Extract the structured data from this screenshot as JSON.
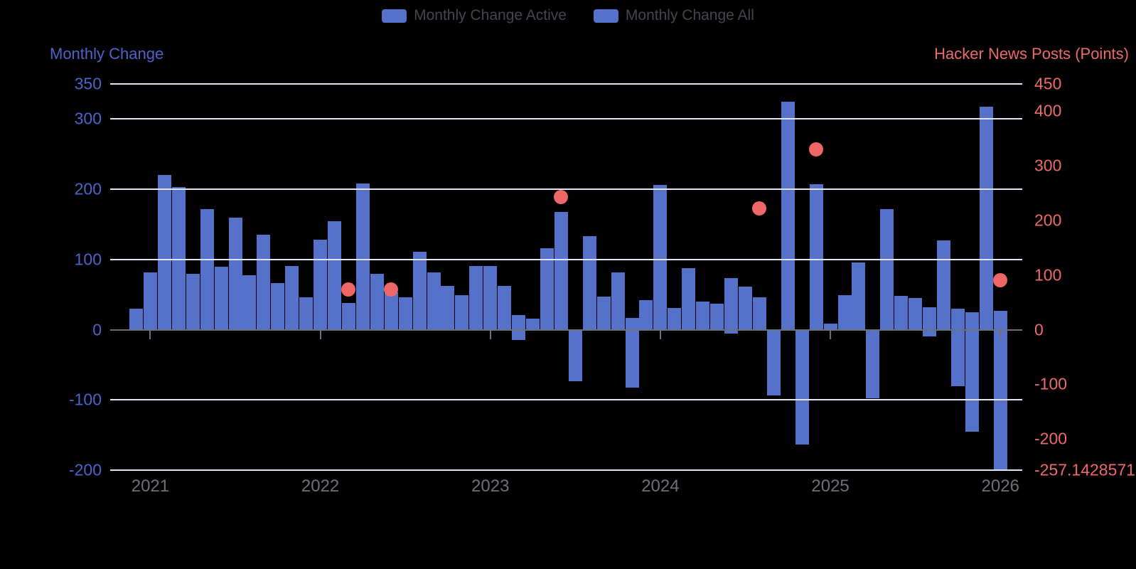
{
  "legend": {
    "items": [
      {
        "label": "Monthly Change Active",
        "swatch_color": "#5571c9"
      },
      {
        "label": "Monthly Change All",
        "swatch_color": "#5571c9"
      }
    ]
  },
  "left_axis_title": "Monthly Change",
  "right_axis_title": "Hacker News Posts (Points)",
  "colors": {
    "bar_blue": "#5571c9",
    "scatter_red": "#ee6666",
    "left_axis_text": "#4c64c8",
    "right_axis_text": "#ee6a6a",
    "x_axis_text": "#6E7079",
    "gridline": "#e0e6f1",
    "zero_line": "#6E7079",
    "background": "#000000"
  },
  "chart_data": {
    "type": "bar+scatter",
    "title": "",
    "months": [
      "2020-12",
      "2021-01",
      "2021-02",
      "2021-03",
      "2021-04",
      "2021-05",
      "2021-06",
      "2021-07",
      "2021-08",
      "2021-09",
      "2021-10",
      "2021-11",
      "2021-12",
      "2022-01",
      "2022-02",
      "2022-03",
      "2022-04",
      "2022-05",
      "2022-06",
      "2022-07",
      "2022-08",
      "2022-09",
      "2022-10",
      "2022-11",
      "2022-12",
      "2023-01",
      "2023-02",
      "2023-03",
      "2023-04",
      "2023-05",
      "2023-06",
      "2023-07",
      "2023-08",
      "2023-09",
      "2023-10",
      "2023-11",
      "2023-12",
      "2024-01",
      "2024-02",
      "2024-03",
      "2024-04",
      "2024-05",
      "2024-06",
      "2024-07",
      "2024-08",
      "2024-09",
      "2024-10",
      "2024-11",
      "2024-12",
      "2025-01",
      "2025-02",
      "2025-03",
      "2025-04",
      "2025-05",
      "2025-06",
      "2025-07",
      "2025-08",
      "2025-09",
      "2025-10",
      "2025-11",
      "2025-12",
      "2026-01"
    ],
    "series": [
      {
        "name": "Monthly Change Active",
        "type": "bar",
        "axis": "left",
        "values": [
          30,
          82,
          220,
          203,
          80,
          172,
          90,
          160,
          78,
          135,
          66,
          91,
          46,
          128,
          155,
          38,
          208,
          80,
          53,
          46,
          111,
          82,
          62,
          49,
          91,
          91,
          62,
          21,
          16,
          116,
          168,
          -73,
          133,
          47,
          82,
          17,
          42,
          206,
          31,
          88,
          40,
          37,
          73,
          61,
          46,
          -94,
          325,
          -164,
          207,
          9,
          49,
          96,
          -98,
          172,
          48,
          45,
          32,
          127,
          30,
          25,
          318,
          27
        ]
      },
      {
        "name": "Monthly Change All",
        "type": "bar",
        "axis": "left",
        "values": [
          30,
          82,
          220,
          203,
          80,
          172,
          90,
          160,
          78,
          135,
          66,
          91,
          46,
          128,
          155,
          38,
          208,
          80,
          53,
          46,
          111,
          82,
          62,
          49,
          91,
          91,
          62,
          -15,
          16,
          116,
          168,
          -73,
          133,
          47,
          82,
          -83,
          42,
          206,
          31,
          88,
          40,
          37,
          -6,
          61,
          46,
          -94,
          325,
          -164,
          207,
          9,
          49,
          96,
          -98,
          172,
          48,
          45,
          -10,
          127,
          -80,
          -145,
          318,
          -200
        ]
      },
      {
        "name": "Hacker News Posts (Points)",
        "type": "scatter",
        "axis": "right",
        "points": [
          {
            "month": "2022-03",
            "value": 74
          },
          {
            "month": "2022-06",
            "value": 74
          },
          {
            "month": "2023-06",
            "value": 243
          },
          {
            "month": "2024-08",
            "value": 222
          },
          {
            "month": "2024-12",
            "value": 330
          },
          {
            "month": "2026-01",
            "value": 91
          }
        ]
      }
    ],
    "left_axis": {
      "label": "Monthly Change",
      "ticks": [
        "350",
        "300",
        "200",
        "100",
        "0",
        "-100",
        "-200"
      ],
      "tick_values": [
        350,
        300,
        200,
        100,
        0,
        -100,
        -200
      ],
      "range": [
        -200,
        350
      ],
      "grid": true
    },
    "right_axis": {
      "label": "Hacker News Posts (Points)",
      "ticks": [
        "450",
        "400",
        "300",
        "200",
        "100",
        "0",
        "-100",
        "-200",
        "-257.1428571"
      ],
      "tick_values": [
        450,
        400,
        300,
        200,
        100,
        0,
        -100,
        -200,
        -257.1428571
      ],
      "range": [
        -257.1428571,
        450
      ],
      "grid": false
    },
    "x_axis": {
      "ticks": [
        "2021",
        "2022",
        "2023",
        "2024",
        "2025",
        "2026"
      ],
      "legend_position": "top"
    }
  }
}
